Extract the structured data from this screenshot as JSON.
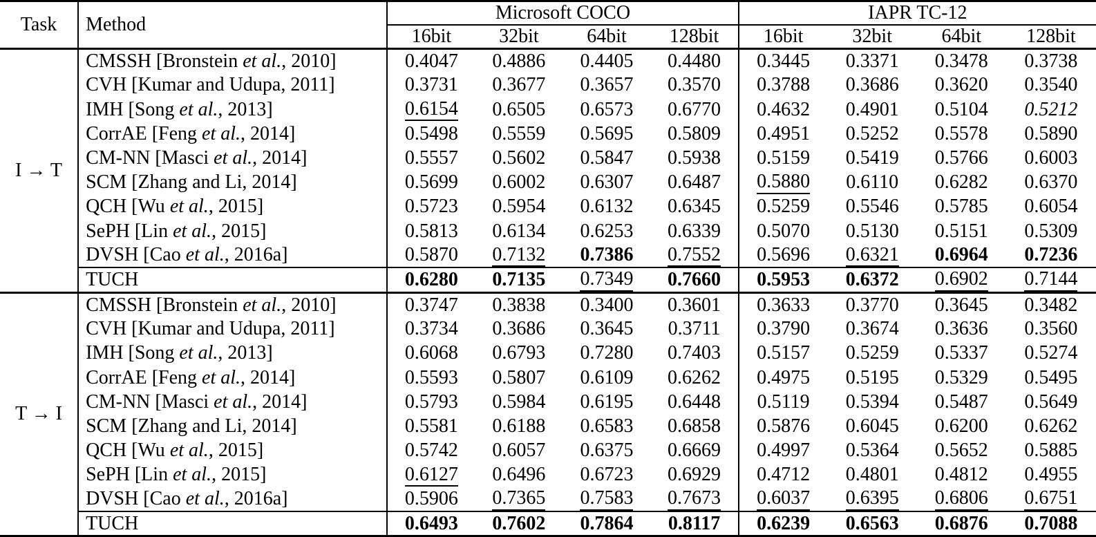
{
  "table": {
    "header": {
      "task": "Task",
      "method": "Method",
      "groups": [
        {
          "label": "Microsoft COCO",
          "bits": [
            "16bit",
            "32bit",
            "64bit",
            "128bit"
          ]
        },
        {
          "label": "IAPR TC-12",
          "bits": [
            "16bit",
            "32bit",
            "64bit",
            "128bit"
          ]
        }
      ]
    },
    "style_legend": {
      "b": "bold (best result)",
      "u": "underlined (second best)",
      "i": "italic"
    },
    "sections": [
      {
        "task": "I → T",
        "rows": [
          {
            "method": "CMSSH [Bronstein et al., 2010]",
            "values": [
              "0.4047",
              "0.4886",
              "0.4405",
              "0.4480",
              "0.3445",
              "0.3371",
              "0.3478",
              "0.3738"
            ],
            "styles": [
              "",
              "",
              "",
              "",
              "",
              "",
              "",
              ""
            ]
          },
          {
            "method": "CVH [Kumar and Udupa, 2011]",
            "values": [
              "0.3731",
              "0.3677",
              "0.3657",
              "0.3570",
              "0.3788",
              "0.3686",
              "0.3620",
              "0.3540"
            ],
            "styles": [
              "",
              "",
              "",
              "",
              "",
              "",
              "",
              ""
            ]
          },
          {
            "method": "IMH [Song et al., 2013]",
            "values": [
              "0.6154",
              "0.6505",
              "0.6573",
              "0.6770",
              "0.4632",
              "0.4901",
              "0.5104",
              "0.5212"
            ],
            "styles": [
              "u",
              "",
              "",
              "",
              "",
              "",
              "",
              "i"
            ]
          },
          {
            "method": "CorrAE [Feng et al., 2014]",
            "values": [
              "0.5498",
              "0.5559",
              "0.5695",
              "0.5809",
              "0.4951",
              "0.5252",
              "0.5578",
              "0.5890"
            ],
            "styles": [
              "",
              "",
              "",
              "",
              "",
              "",
              "",
              ""
            ]
          },
          {
            "method": "CM-NN [Masci et al., 2014]",
            "values": [
              "0.5557",
              "0.5602",
              "0.5847",
              "0.5938",
              "0.5159",
              "0.5419",
              "0.5766",
              "0.6003"
            ],
            "styles": [
              "",
              "",
              "",
              "",
              "",
              "",
              "",
              ""
            ]
          },
          {
            "method": "SCM [Zhang and Li, 2014]",
            "values": [
              "0.5699",
              "0.6002",
              "0.6307",
              "0.6487",
              "0.5880",
              "0.6110",
              "0.6282",
              "0.6370"
            ],
            "styles": [
              "",
              "",
              "",
              "",
              "u",
              "",
              "",
              ""
            ]
          },
          {
            "method": "QCH [Wu et al., 2015]",
            "values": [
              "0.5723",
              "0.5954",
              "0.6132",
              "0.6345",
              "0.5259",
              "0.5546",
              "0.5785",
              "0.6054"
            ],
            "styles": [
              "",
              "",
              "",
              "",
              "",
              "",
              "",
              ""
            ]
          },
          {
            "method": "SePH [Lin et al., 2015]",
            "values": [
              "0.5813",
              "0.6134",
              "0.6253",
              "0.6339",
              "0.5070",
              "0.5130",
              "0.5151",
              "0.5309"
            ],
            "styles": [
              "",
              "",
              "",
              "",
              "",
              "",
              "",
              ""
            ]
          },
          {
            "method": "DVSH [Cao et al., 2016a]",
            "values": [
              "0.5870",
              "0.7132",
              "0.7386",
              "0.7552",
              "0.5696",
              "0.6321",
              "0.6964",
              "0.7236"
            ],
            "styles": [
              "",
              "u",
              "b",
              "u",
              "",
              "u",
              "b",
              "b"
            ]
          },
          {
            "method": "TUCH",
            "tuch": true,
            "values": [
              "0.6280",
              "0.7135",
              "0.7349",
              "0.7660",
              "0.5953",
              "0.6372",
              "0.6902",
              "0.7144"
            ],
            "styles": [
              "b",
              "b",
              "u",
              "b",
              "b",
              "b",
              "u",
              "u"
            ]
          }
        ]
      },
      {
        "task": "T → I",
        "rows": [
          {
            "method": "CMSSH [Bronstein et al., 2010]",
            "values": [
              "0.3747",
              "0.3838",
              "0.3400",
              "0.3601",
              "0.3633",
              "0.3770",
              "0.3645",
              "0.3482"
            ],
            "styles": [
              "",
              "",
              "",
              "",
              "",
              "",
              "",
              ""
            ]
          },
          {
            "method": "CVH [Kumar and Udupa, 2011]",
            "values": [
              "0.3734",
              "0.3686",
              "0.3645",
              "0.3711",
              "0.3790",
              "0.3674",
              "0.3636",
              "0.3560"
            ],
            "styles": [
              "",
              "",
              "",
              "",
              "",
              "",
              "",
              ""
            ]
          },
          {
            "method": "IMH [Song et al., 2013]",
            "values": [
              "0.6068",
              "0.6793",
              "0.7280",
              "0.7403",
              "0.5157",
              "0.5259",
              "0.5337",
              "0.5274"
            ],
            "styles": [
              "",
              "",
              "",
              "",
              "",
              "",
              "",
              ""
            ]
          },
          {
            "method": "CorrAE [Feng et al., 2014]",
            "values": [
              "0.5593",
              "0.5807",
              "0.6109",
              "0.6262",
              "0.4975",
              "0.5195",
              "0.5329",
              "0.5495"
            ],
            "styles": [
              "",
              "",
              "",
              "",
              "",
              "",
              "",
              ""
            ]
          },
          {
            "method": "CM-NN [Masci et al., 2014]",
            "values": [
              "0.5793",
              "0.5984",
              "0.6195",
              "0.6448",
              "0.5119",
              "0.5394",
              "0.5487",
              "0.5649"
            ],
            "styles": [
              "",
              "",
              "",
              "",
              "",
              "",
              "",
              ""
            ]
          },
          {
            "method": "SCM [Zhang and Li, 2014]",
            "values": [
              "0.5581",
              "0.6188",
              "0.6583",
              "0.6858",
              "0.5876",
              "0.6045",
              "0.6200",
              "0.6262"
            ],
            "styles": [
              "",
              "",
              "",
              "",
              "",
              "",
              "",
              ""
            ]
          },
          {
            "method": "QCH [Wu et al., 2015]",
            "values": [
              "0.5742",
              "0.6057",
              "0.6375",
              "0.6669",
              "0.4997",
              "0.5364",
              "0.5652",
              "0.5885"
            ],
            "styles": [
              "",
              "",
              "",
              "",
              "",
              "",
              "",
              ""
            ]
          },
          {
            "method": "SePH [Lin et al., 2015]",
            "values": [
              "0.6127",
              "0.6496",
              "0.6723",
              "0.6929",
              "0.4712",
              "0.4801",
              "0.4812",
              "0.4955"
            ],
            "styles": [
              "u",
              "",
              "",
              "",
              "",
              "",
              "",
              ""
            ]
          },
          {
            "method": "DVSH [Cao et al., 2016a]",
            "values": [
              "0.5906",
              "0.7365",
              "0.7583",
              "0.7673",
              "0.6037",
              "0.6395",
              "0.6806",
              "0.6751"
            ],
            "styles": [
              "",
              "u",
              "u",
              "u",
              "u",
              "u",
              "u",
              "u"
            ]
          },
          {
            "method": "TUCH",
            "tuch": true,
            "values": [
              "0.6493",
              "0.7602",
              "0.7864",
              "0.8117",
              "0.6239",
              "0.6563",
              "0.6876",
              "0.7088"
            ],
            "styles": [
              "b",
              "b",
              "b",
              "b",
              "b",
              "b",
              "b",
              "b"
            ]
          }
        ]
      }
    ]
  }
}
